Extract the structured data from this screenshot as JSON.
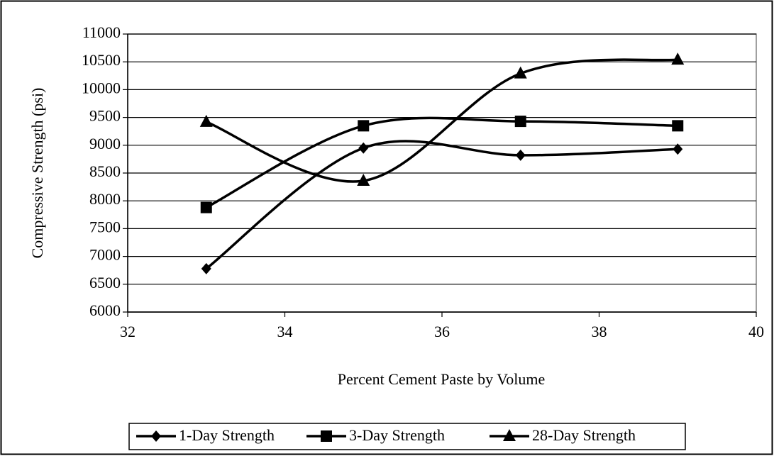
{
  "chart_data": {
    "type": "line",
    "x_label": "Percent Cement Paste by Volume",
    "y_label": "Compressive Strength (psi)",
    "x": [
      33,
      35,
      37,
      39
    ],
    "series": [
      {
        "name": "1-Day Strength",
        "color": "#000000",
        "marker": "diamond",
        "values": [
          6780,
          8950,
          8820,
          8930
        ]
      },
      {
        "name": "3-Day Strength",
        "color": "#000000",
        "marker": "square",
        "values": [
          7880,
          9350,
          9430,
          9350
        ]
      },
      {
        "name": "28-Day Strength",
        "color": "#000000",
        "marker": "triangle",
        "values": [
          9420,
          8360,
          10290,
          10540
        ]
      }
    ],
    "smooth": true,
    "xlim": [
      32,
      40
    ],
    "xticks": [
      32,
      34,
      36,
      38,
      40
    ],
    "ylim": [
      6000,
      11000
    ],
    "yticks": [
      6000,
      6500,
      7000,
      7500,
      8000,
      8500,
      9000,
      9500,
      10000,
      10500,
      11000
    ],
    "grid": true,
    "legend": "bottom"
  }
}
